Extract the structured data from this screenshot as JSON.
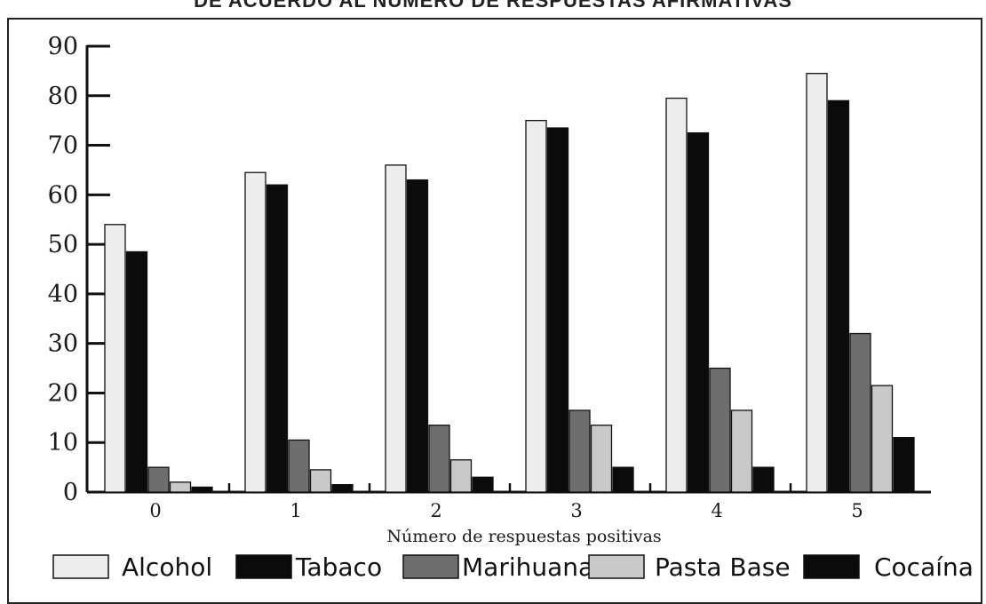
{
  "header_text": "DE ACUERDO AL NÚMERO DE RESPUESTAS AFIRMATIVAS",
  "colors": {
    "alcohol": "#ededed",
    "tabaco": "#0b0b0b",
    "marihuana": "#6e6e6e",
    "pasta_base": "#c9c9c9",
    "cocaina": "#0b0b0b"
  },
  "chart_data": {
    "type": "bar",
    "title": "DE ACUERDO AL NÚMERO DE RESPUESTAS AFIRMATIVAS",
    "xlabel": "Número de respuestas positivas",
    "ylabel": "",
    "categories": [
      "0",
      "1",
      "2",
      "3",
      "4",
      "5"
    ],
    "ylim": [
      0,
      90
    ],
    "yticks": [
      "0",
      "10",
      "20",
      "30",
      "40",
      "50",
      "60",
      "70",
      "80",
      "90"
    ],
    "grid": false,
    "legend_position": "bottom",
    "series": [
      {
        "name": "Alcohol",
        "key": "alcohol",
        "values": [
          54,
          64.5,
          66,
          75,
          79.5,
          84.5
        ]
      },
      {
        "name": "Tabaco",
        "key": "tabaco",
        "values": [
          48.5,
          62,
          63,
          73.5,
          72.5,
          79
        ]
      },
      {
        "name": "Marihuana",
        "key": "marihuana",
        "values": [
          5,
          10.5,
          13.5,
          16.5,
          25,
          32
        ]
      },
      {
        "name": "Pasta Base",
        "key": "pasta_base",
        "values": [
          2,
          4.5,
          6.5,
          13.5,
          16.5,
          21.5
        ]
      },
      {
        "name": "Cocaína",
        "key": "cocaina",
        "values": [
          1,
          1.5,
          3,
          5,
          5,
          11
        ]
      }
    ]
  }
}
